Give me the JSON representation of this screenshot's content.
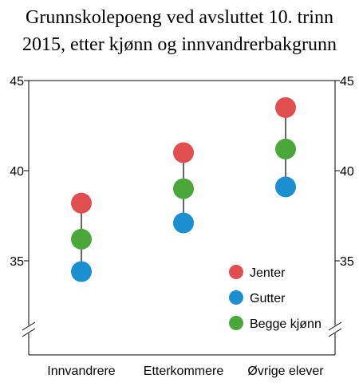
{
  "chart_data": {
    "type": "scatter",
    "title_lines": [
      "Grunnskolepoeng ved avsluttet 10. trinn",
      "2015, etter kjønn og innvandrerbakgrunn"
    ],
    "categories": [
      "Innvandrere",
      "Etterkommere",
      "Øvrige elever"
    ],
    "series": [
      {
        "name": "Jenter",
        "color": "#e04e4f",
        "values": [
          38.2,
          41.0,
          43.5
        ]
      },
      {
        "name": "Gutter",
        "color": "#1c8fd0",
        "values": [
          34.4,
          37.1,
          39.1
        ]
      },
      {
        "name": "Begge kjønn",
        "color": "#4aa83a",
        "values": [
          36.2,
          39.0,
          41.2
        ]
      }
    ],
    "y_ticks": [
      "35",
      "40",
      "45"
    ],
    "y_tick_values": [
      35,
      40,
      45
    ],
    "ylim": [
      30,
      45
    ],
    "y_axis_break": true,
    "grid": false,
    "legend_position": "bottom-right",
    "connector_color": "#333333"
  }
}
